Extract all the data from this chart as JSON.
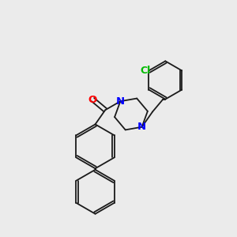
{
  "background_color": "#ebebeb",
  "bond_color": "#1a1a1a",
  "bond_width": 1.3,
  "N_color": "#0000ff",
  "O_color": "#ff0000",
  "Cl_color": "#00bb00",
  "figsize": [
    3.0,
    3.0
  ],
  "dpi": 100,
  "xlim": [
    0,
    10
  ],
  "ylim": [
    0,
    10
  ]
}
